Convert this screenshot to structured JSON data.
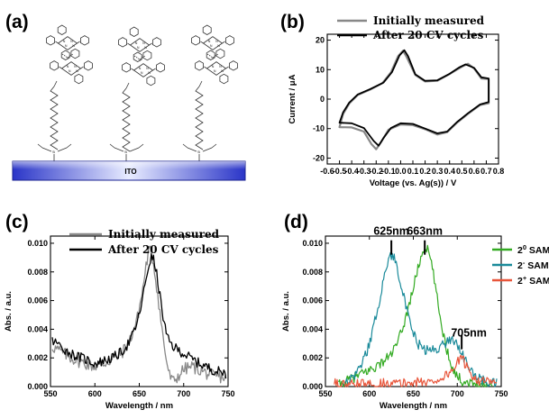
{
  "figure": {
    "panel_a": {
      "label": "(a)",
      "substrate_label": "ITO",
      "molecule_labels": [
        "N",
        "N",
        "N",
        "N",
        "Y",
        "Si"
      ]
    },
    "panel_b": {
      "label": "(b)"
    },
    "panel_c": {
      "label": "(c)"
    },
    "panel_d": {
      "label": "(d)",
      "peak_labels": [
        "625nm",
        "663nm",
        "705nm"
      ],
      "legend_sup": [
        "0",
        "-",
        "+"
      ]
    }
  },
  "chart_data": [
    {
      "id": "b",
      "type": "line",
      "xlabel": "Voltage (vs. Ag(s)) / V",
      "ylabel": "Current / μA",
      "xlim": [
        -0.6,
        0.8
      ],
      "ylim": [
        -22,
        22
      ],
      "x_ticks": [
        -0.6,
        -0.5,
        -0.4,
        -0.3,
        -0.2,
        -0.1,
        0.0,
        0.1,
        0.2,
        0.3,
        0.4,
        0.5,
        0.6,
        0.7,
        0.8
      ],
      "x_tick_labels": [
        "-0.6",
        "-0.5",
        "-0.4",
        "-0.3",
        "-0.2",
        "-0.1",
        "0.0",
        "0.1",
        "0.2",
        "0.3",
        "0.4",
        "0.5",
        "0.6",
        "0.7",
        "0.8"
      ],
      "y_ticks": [
        -20,
        -10,
        0,
        10,
        20
      ],
      "y_tick_labels": [
        "-20",
        "-10",
        "0",
        "10",
        "20"
      ],
      "legend_position": "top-right",
      "series": [
        {
          "name": "Initially measured",
          "color": "#888888",
          "points": [
            [
              -0.5,
              -9.5
            ],
            [
              -0.4,
              -9.6
            ],
            [
              -0.3,
              -11.0
            ],
            [
              -0.24,
              -15.2
            ],
            [
              -0.2,
              -17.0
            ],
            [
              -0.16,
              -14.6
            ],
            [
              -0.1,
              -10.4
            ],
            [
              0.0,
              -8.6
            ],
            [
              0.1,
              -8.8
            ],
            [
              0.2,
              -10.2
            ],
            [
              0.3,
              -12.0
            ],
            [
              0.38,
              -11.2
            ],
            [
              0.46,
              -8.0
            ],
            [
              0.55,
              -5.0
            ],
            [
              0.65,
              -2.0
            ],
            [
              0.72,
              -1.4
            ],
            [
              0.72,
              6.8
            ],
            [
              0.66,
              7.0
            ],
            [
              0.6,
              10.4
            ],
            [
              0.55,
              12.0
            ],
            [
              0.5,
              11.0
            ],
            [
              0.4,
              8.5
            ],
            [
              0.3,
              6.2
            ],
            [
              0.2,
              6.0
            ],
            [
              0.12,
              8.2
            ],
            [
              0.05,
              14.2
            ],
            [
              0.02,
              16.4
            ],
            [
              -0.02,
              14.6
            ],
            [
              -0.08,
              9.0
            ],
            [
              -0.15,
              5.4
            ],
            [
              -0.25,
              3.2
            ],
            [
              -0.35,
              1.4
            ],
            [
              -0.42,
              -1.5
            ],
            [
              -0.47,
              -5.0
            ],
            [
              -0.5,
              -9.5
            ]
          ]
        },
        {
          "name": "After 20 CV cycles",
          "color": "#000000",
          "points": [
            [
              -0.5,
              -8.0
            ],
            [
              -0.4,
              -8.2
            ],
            [
              -0.3,
              -9.8
            ],
            [
              -0.22,
              -14.2
            ],
            [
              -0.18,
              -15.8
            ],
            [
              -0.14,
              -13.2
            ],
            [
              -0.08,
              -9.8
            ],
            [
              0.0,
              -8.2
            ],
            [
              0.1,
              -8.4
            ],
            [
              0.2,
              -10.0
            ],
            [
              0.3,
              -11.6
            ],
            [
              0.38,
              -11.0
            ],
            [
              0.46,
              -7.8
            ],
            [
              0.55,
              -4.8
            ],
            [
              0.65,
              -1.8
            ],
            [
              0.72,
              -1.0
            ],
            [
              0.72,
              7.0
            ],
            [
              0.66,
              7.4
            ],
            [
              0.6,
              10.6
            ],
            [
              0.53,
              11.8
            ],
            [
              0.48,
              10.8
            ],
            [
              0.4,
              8.6
            ],
            [
              0.3,
              6.4
            ],
            [
              0.2,
              6.2
            ],
            [
              0.12,
              8.4
            ],
            [
              0.06,
              14.6
            ],
            [
              0.03,
              16.6
            ],
            [
              -0.01,
              14.8
            ],
            [
              -0.07,
              9.2
            ],
            [
              -0.14,
              5.6
            ],
            [
              -0.25,
              3.4
            ],
            [
              -0.35,
              1.6
            ],
            [
              -0.42,
              -1.2
            ],
            [
              -0.47,
              -4.5
            ],
            [
              -0.5,
              -8.0
            ]
          ]
        }
      ]
    },
    {
      "id": "c",
      "type": "line",
      "xlabel": "Wavelength / nm",
      "ylabel": "Abs. / a.u.",
      "xlim": [
        550,
        750
      ],
      "ylim": [
        0,
        0.0105
      ],
      "x_ticks": [
        550,
        600,
        650,
        700,
        750
      ],
      "x_tick_labels": [
        "550",
        "600",
        "650",
        "700",
        "750"
      ],
      "y_ticks": [
        0,
        0.002,
        0.004,
        0.006,
        0.008,
        0.01
      ],
      "y_tick_labels": [
        "0.000",
        "0.002",
        "0.004",
        "0.006",
        "0.008",
        "0.010"
      ],
      "legend_position": "top-right",
      "series": [
        {
          "name": "Initially measured",
          "color": "#888888",
          "points": [
            [
              552,
              0.0028
            ],
            [
              560,
              0.0025
            ],
            [
              570,
              0.0021
            ],
            [
              580,
              0.0018
            ],
            [
              590,
              0.0016
            ],
            [
              600,
              0.0014
            ],
            [
              610,
              0.0016
            ],
            [
              620,
              0.0019
            ],
            [
              630,
              0.0023
            ],
            [
              640,
              0.0033
            ],
            [
              648,
              0.0048
            ],
            [
              654,
              0.0068
            ],
            [
              658,
              0.0086
            ],
            [
              661,
              0.0095
            ],
            [
              664,
              0.0093
            ],
            [
              668,
              0.0078
            ],
            [
              672,
              0.0058
            ],
            [
              676,
              0.0038
            ],
            [
              680,
              0.002
            ],
            [
              684,
              0.0008
            ],
            [
              688,
              0.0003
            ],
            [
              692,
              0.0006
            ],
            [
              700,
              0.0012
            ],
            [
              710,
              0.0014
            ],
            [
              720,
              0.0011
            ],
            [
              730,
              0.0008
            ],
            [
              740,
              0.0007
            ],
            [
              748,
              0.0006
            ]
          ]
        },
        {
          "name": "After 20 CV cycles",
          "color": "#000000",
          "points": [
            [
              552,
              0.0032
            ],
            [
              560,
              0.0029
            ],
            [
              570,
              0.0024
            ],
            [
              580,
              0.0021
            ],
            [
              590,
              0.0019
            ],
            [
              600,
              0.0016
            ],
            [
              610,
              0.0018
            ],
            [
              620,
              0.002
            ],
            [
              630,
              0.0024
            ],
            [
              640,
              0.0032
            ],
            [
              648,
              0.0045
            ],
            [
              654,
              0.0062
            ],
            [
              659,
              0.008
            ],
            [
              663,
              0.009
            ],
            [
              666,
              0.0089
            ],
            [
              670,
              0.0077
            ],
            [
              674,
              0.006
            ],
            [
              678,
              0.0044
            ],
            [
              682,
              0.0033
            ],
            [
              688,
              0.0028
            ],
            [
              695,
              0.0025
            ],
            [
              705,
              0.0021
            ],
            [
              715,
              0.0017
            ],
            [
              725,
              0.0014
            ],
            [
              735,
              0.0011
            ],
            [
              745,
              0.001
            ],
            [
              748,
              0.0009
            ]
          ]
        }
      ]
    },
    {
      "id": "d",
      "type": "line",
      "xlabel": "Wavelength / nm",
      "ylabel": "Abs. / a.u.",
      "xlim": [
        550,
        750
      ],
      "ylim": [
        0,
        0.0105
      ],
      "x_ticks": [
        550,
        600,
        650,
        700,
        750
      ],
      "x_tick_labels": [
        "550",
        "600",
        "650",
        "700",
        "750"
      ],
      "y_ticks": [
        0,
        0.002,
        0.004,
        0.006,
        0.008,
        0.01
      ],
      "y_tick_labels": [
        "0.000",
        "0.002",
        "0.004",
        "0.006",
        "0.008",
        "0.010"
      ],
      "legend_position": "top-right",
      "annotations": [
        {
          "text": "625nm",
          "x": 625,
          "y": 0.0092
        },
        {
          "text": "663nm",
          "x": 663,
          "y": 0.0092
        },
        {
          "text": "705nm",
          "x": 705,
          "y": 0.0026
        }
      ],
      "series": [
        {
          "name": "2",
          "superscript": "0",
          "label": "SAM",
          "color": "#33AA22",
          "points": [
            [
              565,
              0.0001
            ],
            [
              575,
              0.0004
            ],
            [
              585,
              0.0007
            ],
            [
              595,
              0.001
            ],
            [
              605,
              0.0013
            ],
            [
              615,
              0.0017
            ],
            [
              625,
              0.0023
            ],
            [
              632,
              0.003
            ],
            [
              640,
              0.0045
            ],
            [
              648,
              0.0064
            ],
            [
              655,
              0.0082
            ],
            [
              660,
              0.0093
            ],
            [
              664,
              0.0098
            ],
            [
              668,
              0.0093
            ],
            [
              673,
              0.0078
            ],
            [
              678,
              0.0058
            ],
            [
              683,
              0.004
            ],
            [
              688,
              0.0026
            ],
            [
              693,
              0.0016
            ],
            [
              698,
              0.0009
            ],
            [
              705,
              0.0004
            ],
            [
              715,
              0.0002
            ],
            [
              725,
              0.0001
            ],
            [
              740,
              0.0001
            ]
          ]
        },
        {
          "name": "2",
          "superscript": "-",
          "label": "SAM",
          "color": "#1A8A9A",
          "points": [
            [
              570,
              0.0002
            ],
            [
              580,
              0.0006
            ],
            [
              590,
              0.0014
            ],
            [
              598,
              0.0026
            ],
            [
              605,
              0.0042
            ],
            [
              612,
              0.0062
            ],
            [
              618,
              0.008
            ],
            [
              622,
              0.009
            ],
            [
              626,
              0.0092
            ],
            [
              630,
              0.0087
            ],
            [
              636,
              0.0072
            ],
            [
              642,
              0.0054
            ],
            [
              648,
              0.004
            ],
            [
              655,
              0.003
            ],
            [
              662,
              0.0026
            ],
            [
              670,
              0.0025
            ],
            [
              678,
              0.0027
            ],
            [
              686,
              0.003
            ],
            [
              692,
              0.0033
            ],
            [
              698,
              0.0032
            ],
            [
              704,
              0.0025
            ],
            [
              712,
              0.0014
            ],
            [
              722,
              0.0006
            ],
            [
              735,
              0.0003
            ],
            [
              745,
              0.0002
            ]
          ]
        },
        {
          "name": "2",
          "superscript": "+",
          "label": "SAM",
          "color": "#E8553A",
          "points": [
            [
              560,
              0.0002
            ],
            [
              575,
              0.0001
            ],
            [
              590,
              0.0002
            ],
            [
              605,
              0.0001
            ],
            [
              620,
              0.0003
            ],
            [
              635,
              0.0002
            ],
            [
              650,
              0.0003
            ],
            [
              665,
              0.0003
            ],
            [
              675,
              0.0004
            ],
            [
              685,
              0.0007
            ],
            [
              692,
              0.001
            ],
            [
              698,
              0.0015
            ],
            [
              703,
              0.0019
            ],
            [
              707,
              0.0018
            ],
            [
              712,
              0.0013
            ],
            [
              718,
              0.0007
            ],
            [
              726,
              0.0004
            ],
            [
              735,
              0.0003
            ],
            [
              745,
              0.0002
            ]
          ]
        }
      ]
    }
  ]
}
